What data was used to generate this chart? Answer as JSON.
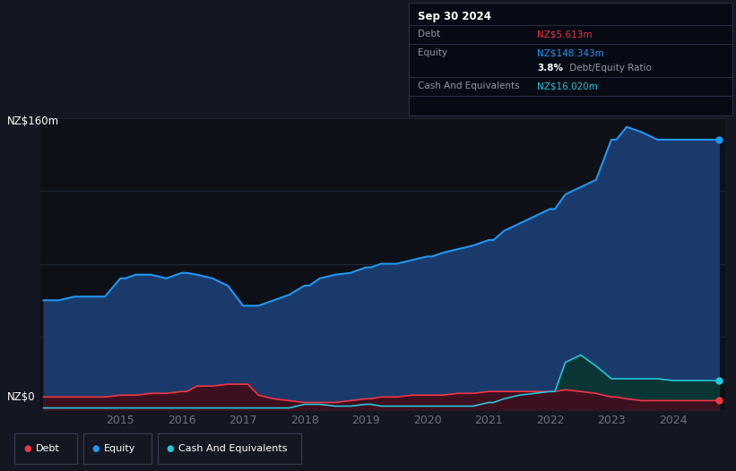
{
  "bg_color": "#131722",
  "plot_bg_color": "#0d1117",
  "grid_color": "#1e2535",
  "axis_label_color": "#6b7280",
  "equity_color": "#2196f3",
  "debt_color": "#f23645",
  "cash_color": "#26c6da",
  "equity_fill": "#1a3a6b",
  "debt_fill": "#3d1020",
  "cash_fill": "#0a3535",
  "ylim": [
    0,
    160
  ],
  "ylabel": "NZ$160m",
  "y0label": "NZ$0",
  "info_box": {
    "date": "Sep 30 2024",
    "debt_label": "Debt",
    "debt_value": "NZ$5.613m",
    "equity_label": "Equity",
    "equity_value": "NZ$148.343m",
    "ratio_bold": "3.8%",
    "ratio_rest": " Debt/Equity Ratio",
    "cash_label": "Cash And Equivalents",
    "cash_value": "NZ$16.020m"
  },
  "years": [
    2013.75,
    2014.0,
    2014.25,
    2014.5,
    2014.75,
    2015.0,
    2015.08,
    2015.25,
    2015.5,
    2015.75,
    2016.0,
    2016.08,
    2016.25,
    2016.5,
    2016.75,
    2017.0,
    2017.08,
    2017.25,
    2017.5,
    2017.75,
    2018.0,
    2018.08,
    2018.25,
    2018.5,
    2018.75,
    2019.0,
    2019.08,
    2019.25,
    2019.5,
    2019.75,
    2020.0,
    2020.08,
    2020.25,
    2020.5,
    2020.75,
    2021.0,
    2021.08,
    2021.25,
    2021.5,
    2021.75,
    2022.0,
    2022.08,
    2022.25,
    2022.5,
    2022.75,
    2023.0,
    2023.08,
    2023.25,
    2023.5,
    2023.75,
    2024.0,
    2024.25,
    2024.5,
    2024.75
  ],
  "equity": [
    60,
    60,
    62,
    62,
    62,
    72,
    72,
    74,
    74,
    72,
    75,
    75,
    74,
    72,
    68,
    57,
    57,
    57,
    60,
    63,
    68,
    68,
    72,
    74,
    75,
    78,
    78,
    80,
    80,
    82,
    84,
    84,
    86,
    88,
    90,
    93,
    93,
    98,
    102,
    106,
    110,
    110,
    118,
    122,
    126,
    148,
    148,
    155,
    152,
    148,
    148,
    148,
    148,
    148
  ],
  "debt": [
    7,
    7,
    7,
    7,
    7,
    8,
    8,
    8,
    9,
    9,
    10,
    10,
    13,
    13,
    14,
    14,
    14,
    8,
    6,
    5,
    4,
    4,
    4,
    4,
    5,
    6,
    6,
    7,
    7,
    8,
    8,
    8,
    8,
    9,
    9,
    10,
    10,
    10,
    10,
    10,
    10,
    10,
    11,
    10,
    9,
    7,
    7,
    6,
    5,
    5,
    5,
    5,
    5,
    5
  ],
  "cash": [
    1,
    1,
    1,
    1,
    1,
    1,
    1,
    1,
    1,
    1,
    1,
    1,
    1,
    1,
    1,
    1,
    1,
    1,
    1,
    1,
    3,
    3,
    3,
    2,
    2,
    3,
    3,
    2,
    2,
    2,
    2,
    2,
    2,
    2,
    2,
    4,
    4,
    6,
    8,
    9,
    10,
    10,
    26,
    30,
    24,
    17,
    17,
    17,
    17,
    17,
    16,
    16,
    16,
    16
  ],
  "xticks": [
    2015,
    2016,
    2017,
    2018,
    2019,
    2020,
    2021,
    2022,
    2023,
    2024
  ],
  "legend_items": [
    {
      "label": "Debt",
      "color": "#f23645"
    },
    {
      "label": "Equity",
      "color": "#2196f3"
    },
    {
      "label": "Cash And Equivalents",
      "color": "#26c6da"
    }
  ]
}
